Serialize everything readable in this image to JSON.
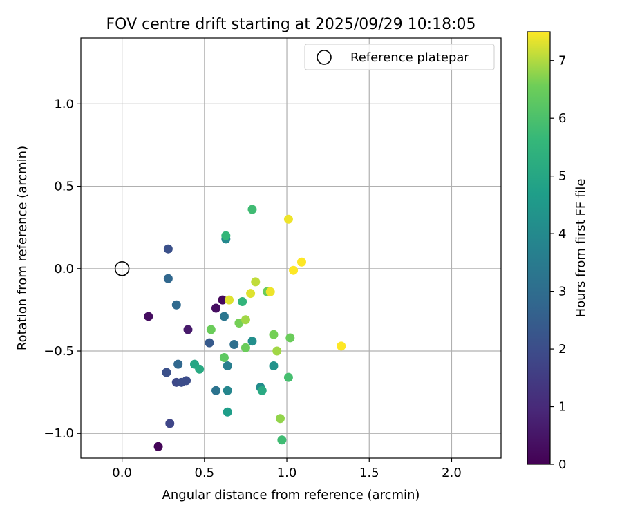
{
  "chart_data": {
    "type": "scatter",
    "title": "FOV centre drift starting at 2025/09/29 10:18:05",
    "xlabel": "Angular distance from reference (arcmin)",
    "ylabel": "Rotation from reference (arcmin)",
    "xlim": [
      -0.25,
      2.3
    ],
    "ylim": [
      -1.15,
      1.4
    ],
    "xticks": [
      0.0,
      0.5,
      1.0,
      1.5,
      2.0
    ],
    "xtick_labels": [
      "0.0",
      "0.5",
      "1.0",
      "1.5",
      "2.0"
    ],
    "yticks": [
      -1.0,
      -0.5,
      0.0,
      0.5,
      1.0
    ],
    "ytick_labels": [
      "−1.0",
      "−0.5",
      "0.0",
      "0.5",
      "1.0"
    ],
    "grid": true,
    "legend": {
      "placement": "top-right",
      "entries": [
        "Reference platepar"
      ]
    },
    "reference_point": {
      "x": 0.0,
      "y": 0.0,
      "label": "Reference platepar"
    },
    "colorbar": {
      "label": "Hours from first FF file",
      "min": 0,
      "max": 7.5,
      "ticks": [
        0,
        1,
        2,
        3,
        4,
        5,
        6,
        7
      ],
      "tick_labels": [
        "0",
        "1",
        "2",
        "3",
        "4",
        "5",
        "6",
        "7"
      ],
      "colormap": "viridis"
    },
    "points": [
      {
        "x": 0.22,
        "y": -1.08,
        "hours": 0.1
      },
      {
        "x": 0.16,
        "y": -0.29,
        "hours": 0.3
      },
      {
        "x": 0.57,
        "y": -0.24,
        "hours": 0.3
      },
      {
        "x": 0.61,
        "y": -0.19,
        "hours": 0.2
      },
      {
        "x": 0.4,
        "y": -0.37,
        "hours": 0.6
      },
      {
        "x": 0.29,
        "y": -0.94,
        "hours": 1.8
      },
      {
        "x": 0.33,
        "y": -0.69,
        "hours": 1.9
      },
      {
        "x": 0.36,
        "y": -0.69,
        "hours": 2.0
      },
      {
        "x": 0.39,
        "y": -0.68,
        "hours": 2.0
      },
      {
        "x": 0.27,
        "y": -0.63,
        "hours": 2.1
      },
      {
        "x": 0.28,
        "y": 0.12,
        "hours": 2.1
      },
      {
        "x": 0.53,
        "y": -0.45,
        "hours": 2.4
      },
      {
        "x": 0.34,
        "y": -0.58,
        "hours": 2.8
      },
      {
        "x": 0.28,
        "y": -0.06,
        "hours": 2.8
      },
      {
        "x": 0.33,
        "y": -0.22,
        "hours": 2.9
      },
      {
        "x": 0.57,
        "y": -0.74,
        "hours": 3.2
      },
      {
        "x": 0.62,
        "y": -0.29,
        "hours": 3.3
      },
      {
        "x": 0.68,
        "y": -0.46,
        "hours": 3.1
      },
      {
        "x": 0.64,
        "y": -0.59,
        "hours": 3.6
      },
      {
        "x": 0.64,
        "y": -0.74,
        "hours": 3.9
      },
      {
        "x": 0.63,
        "y": 0.18,
        "hours": 4.0
      },
      {
        "x": 0.84,
        "y": -0.72,
        "hours": 4.1
      },
      {
        "x": 0.79,
        "y": -0.44,
        "hours": 4.2
      },
      {
        "x": 0.92,
        "y": -0.59,
        "hours": 4.3
      },
      {
        "x": 0.64,
        "y": -0.87,
        "hours": 4.7
      },
      {
        "x": 0.44,
        "y": -0.58,
        "hours": 5.0
      },
      {
        "x": 0.47,
        "y": -0.61,
        "hours": 5.1
      },
      {
        "x": 0.85,
        "y": -0.74,
        "hours": 5.1
      },
      {
        "x": 0.73,
        "y": -0.2,
        "hours": 5.5
      },
      {
        "x": 0.63,
        "y": 0.2,
        "hours": 5.6
      },
      {
        "x": 0.79,
        "y": 0.36,
        "hours": 5.8
      },
      {
        "x": 0.97,
        "y": -1.04,
        "hours": 5.8
      },
      {
        "x": 1.01,
        "y": -0.66,
        "hours": 5.9
      },
      {
        "x": 0.62,
        "y": -0.54,
        "hours": 6.3
      },
      {
        "x": 0.54,
        "y": -0.37,
        "hours": 6.5
      },
      {
        "x": 0.71,
        "y": -0.33,
        "hours": 6.6
      },
      {
        "x": 0.75,
        "y": -0.48,
        "hours": 6.5
      },
      {
        "x": 0.92,
        "y": -0.4,
        "hours": 6.6
      },
      {
        "x": 1.02,
        "y": -0.42,
        "hours": 6.5
      },
      {
        "x": 0.96,
        "y": -0.91,
        "hours": 6.8
      },
      {
        "x": 0.94,
        "y": -0.5,
        "hours": 6.9
      },
      {
        "x": 0.88,
        "y": -0.14,
        "hours": 6.5
      },
      {
        "x": 0.75,
        "y": -0.31,
        "hours": 6.9
      },
      {
        "x": 0.81,
        "y": -0.08,
        "hours": 7.1
      },
      {
        "x": 0.78,
        "y": -0.15,
        "hours": 7.3
      },
      {
        "x": 0.65,
        "y": -0.19,
        "hours": 7.3
      },
      {
        "x": 0.9,
        "y": -0.14,
        "hours": 7.4
      },
      {
        "x": 1.01,
        "y": 0.3,
        "hours": 7.4
      },
      {
        "x": 1.09,
        "y": 0.04,
        "hours": 7.5
      },
      {
        "x": 1.04,
        "y": -0.01,
        "hours": 7.5
      },
      {
        "x": 1.33,
        "y": -0.47,
        "hours": 7.5
      }
    ]
  }
}
